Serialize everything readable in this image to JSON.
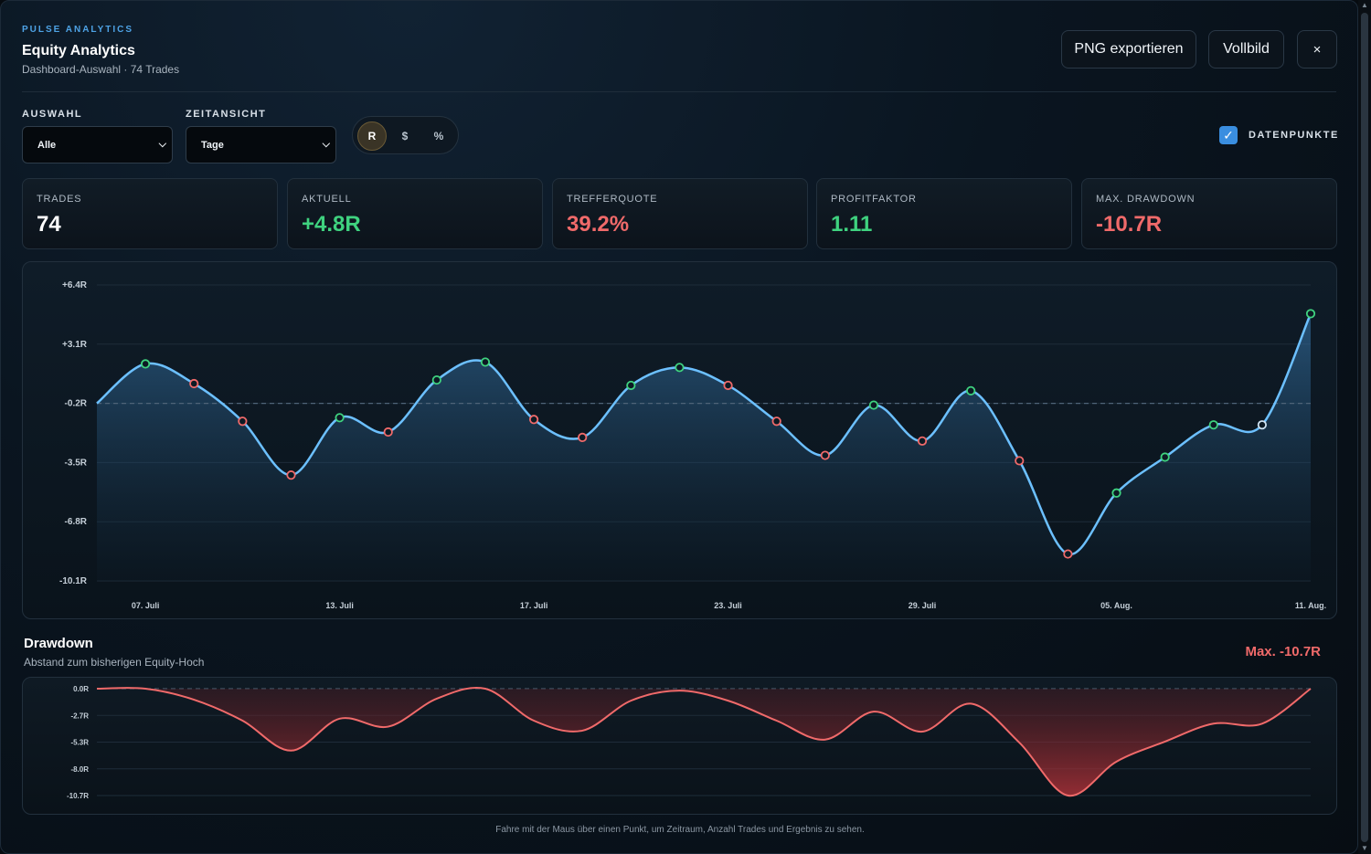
{
  "header": {
    "brand": "PULSE ANALYTICS",
    "title": "Equity Analytics",
    "subtitle": "Dashboard-Auswahl · 74 Trades",
    "export_label": "PNG exportieren",
    "fullscreen_label": "Vollbild",
    "close_label": "×"
  },
  "controls": {
    "selection_label": "AUSWAHL",
    "selection_value": "Alle",
    "timeview_label": "ZEITANSICHT",
    "timeview_value": "Tage",
    "unit_options": [
      "R",
      "$",
      "%"
    ],
    "unit_selected": "R",
    "datapoints_label": "DATENPUNKTE",
    "datapoints_checked": true
  },
  "kpis": [
    {
      "label": "TRADES",
      "value": "74",
      "color": "#ffffff"
    },
    {
      "label": "AKTUELL",
      "value": "+4.8R",
      "color": "#3fd27f"
    },
    {
      "label": "TREFFERQUOTE",
      "value": "39.2%",
      "color": "#f06a6a"
    },
    {
      "label": "PROFITFAKTOR",
      "value": "1.11",
      "color": "#3fd27f"
    },
    {
      "label": "MAX. DRAWDOWN",
      "value": "-10.7R",
      "color": "#f06a6a"
    }
  ],
  "chart_data": [
    {
      "type": "line",
      "title": "",
      "y_ticks": [
        "+6.4R",
        "+3.1R",
        "-0.2R",
        "-3.5R",
        "-6.8R",
        "-10.1R"
      ],
      "ylim": [
        -10.1,
        6.4
      ],
      "baseline": -0.2,
      "x_ticks": [
        {
          "label": "07. Juli",
          "x": 1
        },
        {
          "label": "13. Juli",
          "x": 5
        },
        {
          "label": "17. Juli",
          "x": 9
        },
        {
          "label": "23. Juli",
          "x": 13
        },
        {
          "label": "29. Juli",
          "x": 17
        },
        {
          "label": "05. Aug.",
          "x": 21
        },
        {
          "label": "11. Aug.",
          "x": 25
        }
      ],
      "xlim": [
        0,
        25
      ],
      "points": [
        {
          "x": 0,
          "y": -0.2,
          "marker": "none"
        },
        {
          "x": 1,
          "y": 2.0,
          "marker": "win"
        },
        {
          "x": 2,
          "y": 0.9,
          "marker": "loss"
        },
        {
          "x": 3,
          "y": -1.2,
          "marker": "loss"
        },
        {
          "x": 4,
          "y": -4.2,
          "marker": "loss"
        },
        {
          "x": 5,
          "y": -1.0,
          "marker": "win"
        },
        {
          "x": 6,
          "y": -1.8,
          "marker": "loss"
        },
        {
          "x": 7,
          "y": 1.1,
          "marker": "win"
        },
        {
          "x": 8,
          "y": 2.1,
          "marker": "win"
        },
        {
          "x": 9,
          "y": -1.1,
          "marker": "loss"
        },
        {
          "x": 10,
          "y": -2.1,
          "marker": "loss"
        },
        {
          "x": 11,
          "y": 0.8,
          "marker": "win"
        },
        {
          "x": 12,
          "y": 1.8,
          "marker": "win"
        },
        {
          "x": 13,
          "y": 0.8,
          "marker": "loss"
        },
        {
          "x": 14,
          "y": -1.2,
          "marker": "loss"
        },
        {
          "x": 15,
          "y": -3.1,
          "marker": "loss"
        },
        {
          "x": 16,
          "y": -0.3,
          "marker": "win"
        },
        {
          "x": 17,
          "y": -2.3,
          "marker": "loss"
        },
        {
          "x": 18,
          "y": 0.5,
          "marker": "win"
        },
        {
          "x": 19,
          "y": -3.4,
          "marker": "loss"
        },
        {
          "x": 20,
          "y": -8.6,
          "marker": "loss"
        },
        {
          "x": 21,
          "y": -5.2,
          "marker": "win"
        },
        {
          "x": 22,
          "y": -3.2,
          "marker": "win"
        },
        {
          "x": 23,
          "y": -1.4,
          "marker": "win"
        },
        {
          "x": 24,
          "y": -1.4,
          "marker": "flat"
        },
        {
          "x": 25,
          "y": 4.8,
          "marker": "win"
        }
      ]
    },
    {
      "type": "area",
      "title": "Drawdown",
      "y_ticks": [
        "0.0R",
        "-2.7R",
        "-5.3R",
        "-8.0R",
        "-10.7R"
      ],
      "ylim": [
        -10.7,
        0
      ],
      "x": [
        0,
        1,
        2,
        3,
        4,
        5,
        6,
        7,
        8,
        9,
        10,
        11,
        12,
        13,
        14,
        15,
        16,
        17,
        18,
        19,
        20,
        21,
        22,
        23,
        24,
        25
      ],
      "values": [
        0,
        0,
        -1.1,
        -3.2,
        -6.2,
        -3.0,
        -3.8,
        -1.0,
        0,
        -3.2,
        -4.2,
        -1.2,
        -0.2,
        -1.2,
        -3.2,
        -5.1,
        -2.3,
        -4.3,
        -1.5,
        -5.4,
        -10.7,
        -7.3,
        -5.3,
        -3.5,
        -3.5,
        0
      ]
    }
  ],
  "drawdown": {
    "title": "Drawdown",
    "subtitle": "Abstand zum bisherigen Equity-Hoch",
    "max_label": "Max. -10.7R"
  },
  "hint": "Fahre mit der Maus über einen Punkt, um Zeitraum, Anzahl Trades und Ergebnis zu sehen.",
  "colors": {
    "accent": "#4ea3e6",
    "line": "#6cc0ff",
    "win": "#3fd27f",
    "loss": "#f06a6a",
    "flat": "#cfe3f2",
    "drawdown": "#f06a6a"
  }
}
